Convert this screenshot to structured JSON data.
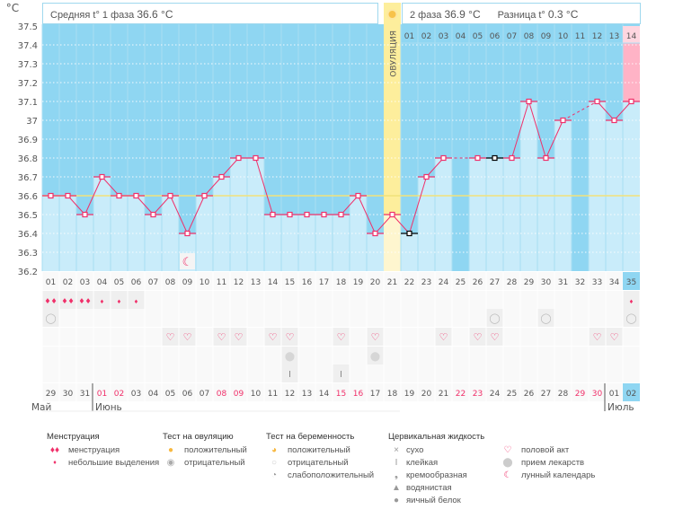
{
  "unit_label": "°C",
  "header": {
    "phase1_label": "Средняя t° 1 фаза",
    "phase1_value": "36.6 °C",
    "phase2_label": "2 фаза",
    "phase2_value": "36.9 °C",
    "diff_label": "Разница t°",
    "diff_value": "0.3 °C"
  },
  "ovulation_label": "ОВУЛЯЦИЯ",
  "chart_data": {
    "type": "line",
    "ylim": [
      36.2,
      37.5
    ],
    "yticks": [
      "37.5",
      "37.4",
      "37.3",
      "37.2",
      "37.1",
      "37",
      "36.9",
      "36.8",
      "36.7",
      "36.6",
      "36.5",
      "36.4",
      "36.3",
      "36.2"
    ],
    "average_line": 36.6,
    "ovulation_day": 21,
    "cycle_days": [
      "01",
      "02",
      "03",
      "04",
      "05",
      "06",
      "07",
      "08",
      "09",
      "10",
      "11",
      "12",
      "13",
      "14",
      "15",
      "16",
      "17",
      "18",
      "19",
      "20",
      "21",
      "22",
      "23",
      "24",
      "25",
      "26",
      "27",
      "28",
      "29",
      "30",
      "31",
      "32",
      "33",
      "34",
      "35"
    ],
    "temperatures": [
      36.6,
      36.6,
      36.5,
      36.7,
      36.6,
      36.6,
      36.5,
      36.6,
      36.4,
      36.6,
      36.7,
      36.8,
      36.8,
      36.5,
      36.5,
      36.5,
      36.5,
      36.5,
      36.6,
      36.4,
      36.5,
      36.4,
      36.7,
      36.8,
      null,
      36.8,
      36.8,
      36.8,
      37.1,
      36.8,
      37.0,
      null,
      37.1,
      37.0,
      37.1
    ],
    "excluded_points_days": [
      22,
      27
    ],
    "phase2_days": [
      "01",
      "02",
      "03",
      "04",
      "05",
      "06",
      "07",
      "08",
      "09",
      "10",
      "11",
      "12",
      "13",
      "14"
    ],
    "grid": true,
    "colors": {
      "background": "#8fd6f2",
      "bar": "#c9ecfa",
      "line": "#f0306a",
      "average": "#f2e27a",
      "ovulation": "#fdee9c",
      "current": "#ffb3c6"
    }
  },
  "dates": [
    "29",
    "30",
    "31",
    "01",
    "02",
    "03",
    "04",
    "05",
    "06",
    "07",
    "08",
    "09",
    "10",
    "11",
    "12",
    "13",
    "14",
    "15",
    "16",
    "17",
    "18",
    "19",
    "20",
    "21",
    "22",
    "23",
    "24",
    "25",
    "26",
    "27",
    "28",
    "29",
    "30",
    "01",
    "02"
  ],
  "weekend_date_indexes": [
    3,
    4,
    10,
    11,
    17,
    18,
    24,
    25,
    31,
    32
  ],
  "months": [
    {
      "label": "Май",
      "start": 0
    },
    {
      "label": "Июнь",
      "start": 3
    },
    {
      "label": "Июль",
      "start": 33
    }
  ],
  "marks": {
    "menstruation_heavy": [
      1,
      2,
      3
    ],
    "menstruation_light": [
      4,
      5,
      6,
      35
    ],
    "pregnancy_negative": [
      1,
      27,
      30,
      35
    ],
    "intercourse": [
      8,
      9,
      11,
      12,
      14,
      15,
      18,
      20,
      24,
      26,
      27,
      33,
      34
    ],
    "medication": [
      15,
      20
    ],
    "sticky": [
      15,
      18
    ],
    "moon": [
      9
    ]
  },
  "legend": {
    "menstruation": {
      "title": "Менструация",
      "items": [
        "менструация",
        "небольшие выделения"
      ]
    },
    "ovulation_test": {
      "title": "Тест на овуляцию",
      "items": [
        "положительный",
        "отрицательный"
      ]
    },
    "pregnancy_test": {
      "title": "Тест на беременность",
      "items": [
        "положительный",
        "отрицательный",
        "слабоположительный"
      ]
    },
    "cervical": {
      "title": "Цервикальная жидкость",
      "items": [
        "сухо",
        "клейкая",
        "кремообразная",
        "водянистая",
        "яичный белок"
      ]
    },
    "other": {
      "items": [
        "половой акт",
        "прием лекарств",
        "лунный календарь"
      ]
    }
  }
}
